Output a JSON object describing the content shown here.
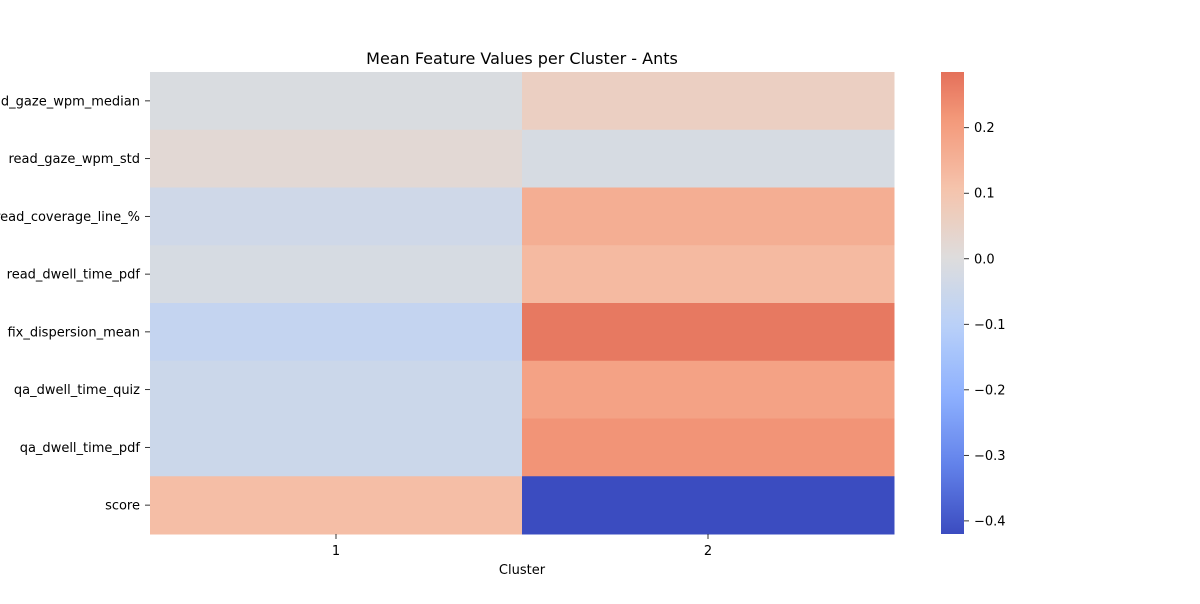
{
  "chart_data": {
    "type": "heatmap",
    "title": "Mean Feature Values per Cluster - Ants",
    "xlabel": "Cluster",
    "ylabel": "",
    "x_categories": [
      "1",
      "2"
    ],
    "y_categories": [
      "read_gaze_wpm_median",
      "read_gaze_wpm_std",
      "read_coverage_line_%",
      "read_dwell_time_pdf",
      "fix_dispersion_mean",
      "qa_dwell_time_quiz",
      "qa_dwell_time_pdf",
      "score"
    ],
    "values": [
      [
        -0.01,
        0.06
      ],
      [
        0.02,
        -0.02
      ],
      [
        -0.04,
        0.16
      ],
      [
        -0.02,
        0.13
      ],
      [
        -0.07,
        0.27
      ],
      [
        -0.05,
        0.19
      ],
      [
        -0.05,
        0.22
      ],
      [
        0.12,
        -0.42
      ]
    ],
    "colorbar": {
      "cmap": "coolwarm",
      "vmin": -0.42,
      "vmax": 0.285,
      "center": 0,
      "ticks": [
        0.2,
        0.1,
        0.0,
        -0.1,
        -0.2,
        -0.3,
        -0.4
      ],
      "tick_labels": [
        "0.2",
        "0.1",
        "0.0",
        "−0.1",
        "−0.2",
        "−0.3",
        "−0.4"
      ]
    }
  }
}
